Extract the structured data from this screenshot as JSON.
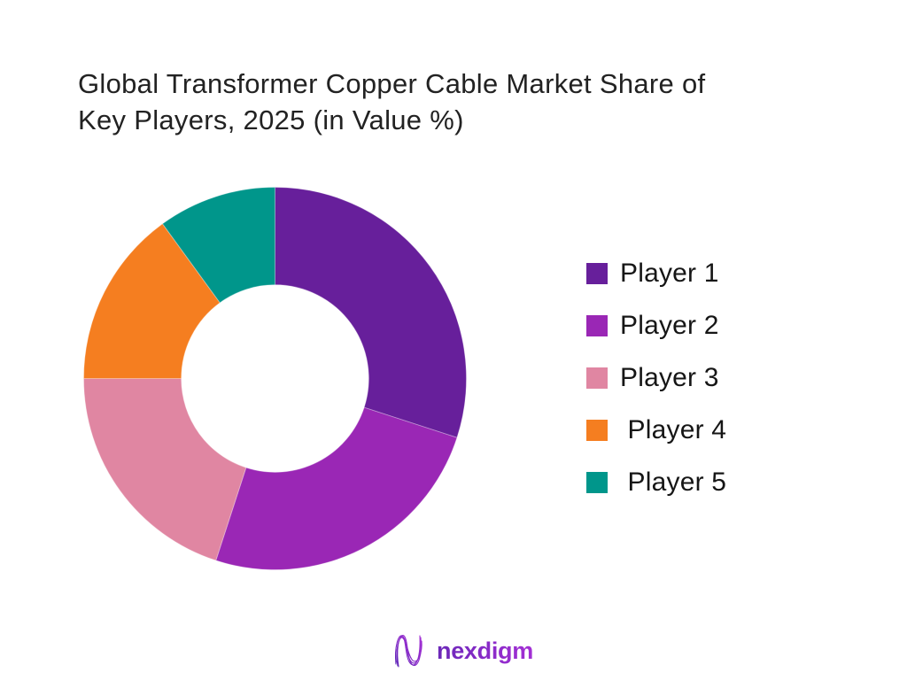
{
  "page": {
    "background": "#ffffff"
  },
  "title": {
    "text": "Global Transformer Copper Cable Market Share of Key Players, 2025 (in Value %)",
    "lines": [
      "Global Transformer Copper Cable Market Share of",
      "Key Players, 2025 (in Value %)"
    ]
  },
  "chart_data": {
    "type": "pie",
    "subtype": "donut",
    "title": "Global Transformer Copper Cable Market Share of Key Players, 2025 (in Value %)",
    "categories": [
      "Player 1",
      "Player 2",
      "Player 3",
      "Player 4",
      "Player 5"
    ],
    "values": [
      30,
      25,
      20,
      15,
      10
    ],
    "unit": "percent of value",
    "colors": [
      "#671f9b",
      "#9a27b5",
      "#e086a2",
      "#f57e20",
      "#00968b"
    ],
    "start_angle_deg": 0,
    "direction": "clockwise",
    "inner_radius_ratio": 0.49,
    "legend_position": "right",
    "data_labels": false,
    "slice_border": "rgba(255,255,255,0.3)"
  },
  "legend": {
    "items": [
      {
        "label": "Player 1",
        "color": "#671f9b"
      },
      {
        "label": "Player 2",
        "color": "#9a27b5"
      },
      {
        "label": "Player 3",
        "color": "#e086a2"
      },
      {
        "label": " Player 4",
        "color": "#f57e20"
      },
      {
        "label": " Player 5",
        "color": "#00968b"
      }
    ]
  },
  "footer": {
    "brand": "nexdigm"
  }
}
